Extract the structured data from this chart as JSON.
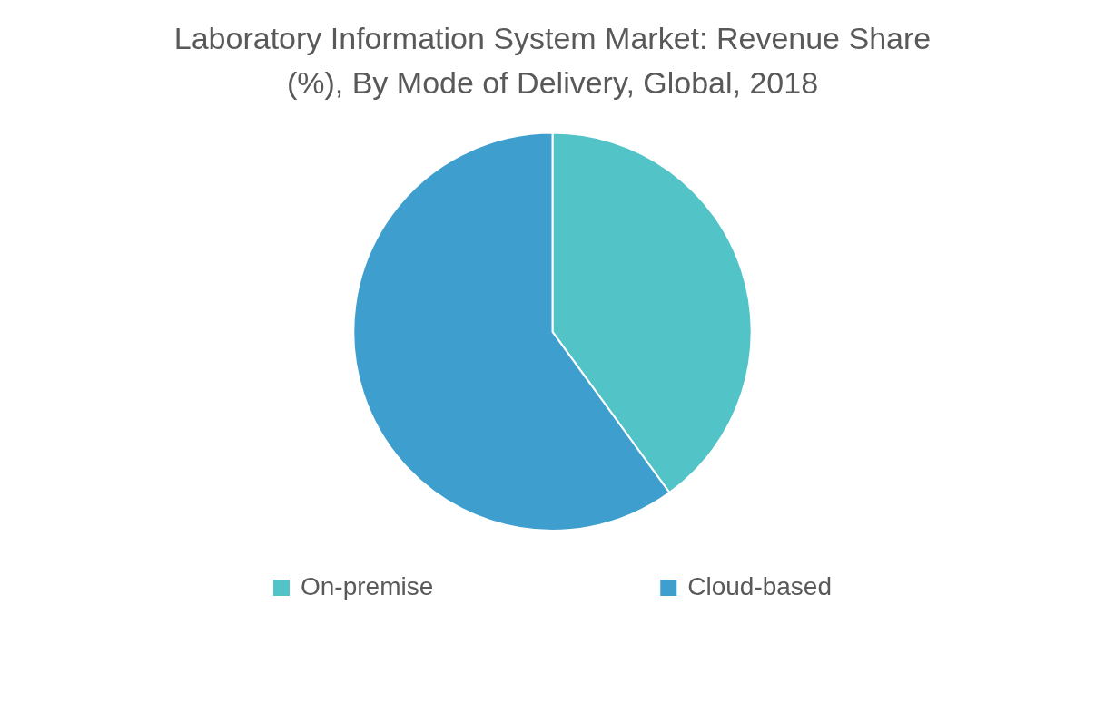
{
  "chart_data": {
    "type": "pie",
    "title": "Laboratory Information System Market: Revenue Share (%), By Mode of Delivery, Global, 2018",
    "categories": [
      "On-premise",
      "Cloud-based"
    ],
    "values": [
      40,
      60
    ],
    "colors": [
      "#52c4c7",
      "#3e9fcf"
    ],
    "legend": "bottom"
  }
}
